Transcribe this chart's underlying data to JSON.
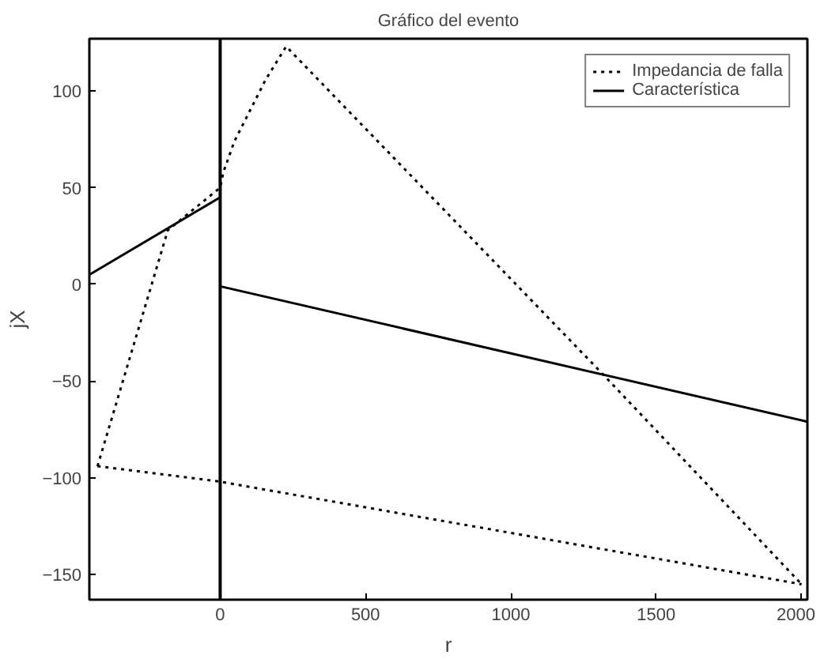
{
  "chart_data": {
    "type": "line",
    "title": "Gráfico del evento",
    "xlabel": "r",
    "ylabel": "jX",
    "xlim": [
      -450,
      2020
    ],
    "ylim": [
      -163,
      127
    ],
    "xticks": [
      0,
      500,
      1000,
      1500,
      2000
    ],
    "yticks": [
      -150,
      -100,
      -50,
      0,
      50,
      100
    ],
    "legend": "top right",
    "ref_lines": [
      {
        "axis": "x",
        "value": 0,
        "color": "#000000",
        "line_style": "solid"
      }
    ],
    "series": [
      {
        "name": "Impedancia de falla",
        "color": "#000000",
        "line_style": "dotted",
        "x": [
          -422,
          -180,
          0,
          11,
          49,
          157,
          227,
          1320,
          2000
        ],
        "values": [
          -94,
          28,
          50,
          58,
          74,
          106,
          123,
          -47,
          -155
        ]
      },
      {
        "color": "#000000",
        "line_style": "dotted",
        "x": [
          -422,
          0,
          2000
        ],
        "values": [
          -94,
          -102,
          -155
        ]
      },
      {
        "name": "Característica",
        "color": "#000000",
        "line_style": "solid",
        "x": [
          0,
          2020
        ],
        "values": [
          -1,
          -71
        ]
      },
      {
        "color": "#000000",
        "line_style": "solid",
        "x": [
          -450,
          0
        ],
        "values": [
          5,
          45
        ]
      }
    ]
  }
}
